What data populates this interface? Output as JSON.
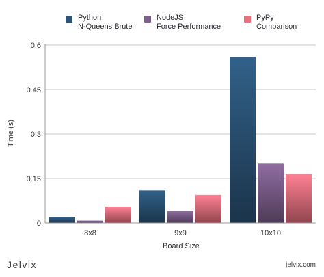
{
  "brand": "Jelvix",
  "site": "jelvix.com",
  "chart_data": {
    "type": "bar",
    "title": "",
    "xlabel": "Board Size",
    "ylabel": "Time (s)",
    "ylim": [
      0,
      0.6
    ],
    "yticks": [
      "0",
      "0.15",
      "0.3",
      "0.45",
      "0.6"
    ],
    "categories": [
      "8x8",
      "9x9",
      "10x10"
    ],
    "legend_position": "top",
    "grid": true,
    "series": [
      {
        "name": "Python\nN-Queens Brute",
        "color": "#2b5478",
        "values": [
          0.02,
          0.11,
          0.56
        ]
      },
      {
        "name": "NodeJS\nForce Performance",
        "color": "#7d5f8c",
        "values": [
          0.008,
          0.04,
          0.2
        ]
      },
      {
        "name": "PyPy\nComparison",
        "color": "#ea7080",
        "values": [
          0.055,
          0.095,
          0.165
        ]
      }
    ]
  }
}
